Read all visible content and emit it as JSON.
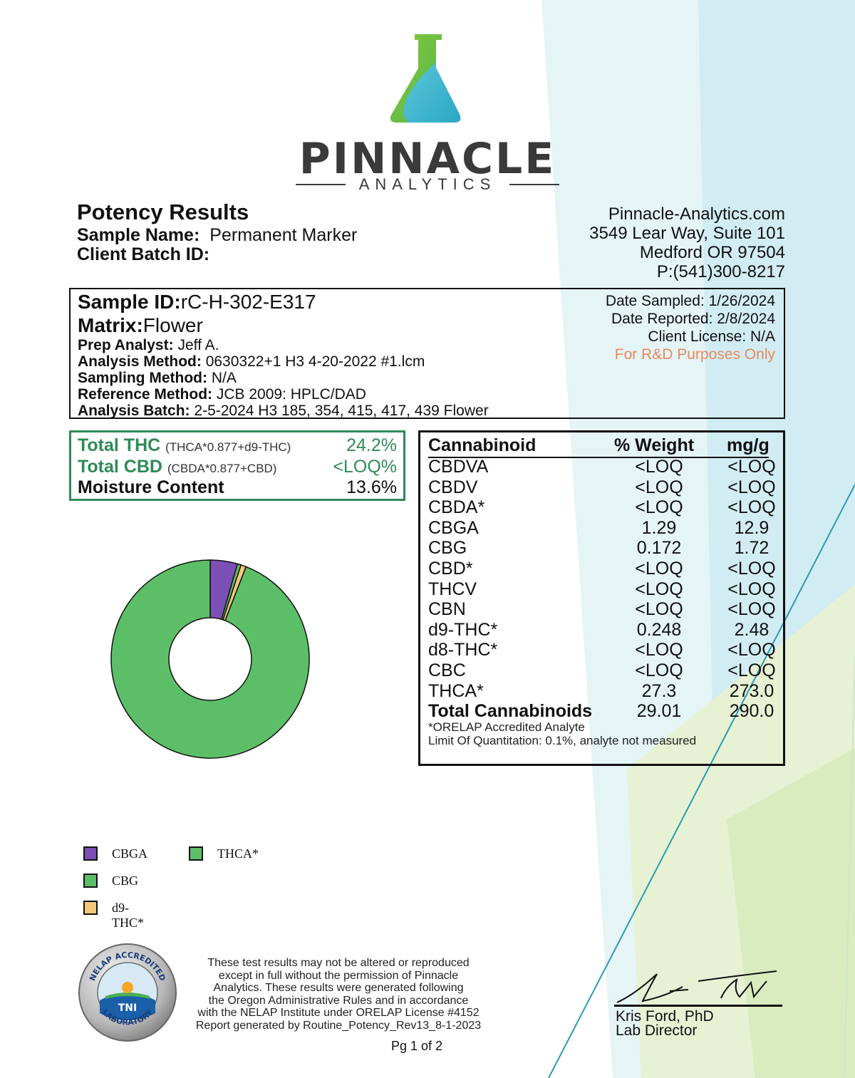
{
  "logo": {
    "word": "PINNACLE",
    "sub": "ANALYTICS"
  },
  "header": {
    "title": "Potency Results",
    "sample_name_label": "Sample Name:",
    "sample_name": "Permanent Marker",
    "client_batch_label": "Client Batch ID:",
    "client_batch": ""
  },
  "address": {
    "website": "Pinnacle-Analytics.com",
    "street": "3549 Lear Way, Suite 101",
    "city": "Medford OR 97504",
    "phone": "P:(541)300-8217"
  },
  "sample": {
    "id_label": "Sample ID:",
    "id": "rC-H-302-E317",
    "matrix_label": "Matrix:",
    "matrix": "Flower",
    "prep_label": "Prep Analyst:",
    "prep": "Jeff A.",
    "method_label": "Analysis Method:",
    "method": "0630322+1 H3 4-20-2022 #1.lcm",
    "sampling_label": "Sampling Method:",
    "sampling": "N/A",
    "reference_label": "Reference Method:",
    "reference": "JCB 2009: HPLC/DAD",
    "batch_label": "Analysis Batch:",
    "batch": "2-5-2024 H3 185, 354, 415, 417, 439 Flower",
    "date_sampled": "Date Sampled:  1/26/2024",
    "date_reported": "Date Reported: 2/8/2024",
    "client_license": "Client License: N/A",
    "purpose": "For R&D Purposes Only"
  },
  "totals": {
    "thc_label": "Total THC",
    "thc_formula": "(THCA*0.877+d9-THC)",
    "thc_value": "24.2%",
    "cbd_label": "Total CBD",
    "cbd_formula": "(CBDA*0.877+CBD)",
    "cbd_value": "<LOQ%",
    "moisture_label": "Moisture Content",
    "moisture_value": "13.6%"
  },
  "cannabinoids": {
    "headers": {
      "name": "Cannabinoid",
      "pct": "% Weight",
      "mg": "mg/g"
    },
    "rows": [
      {
        "name": "CBDVA",
        "pct": "<LOQ",
        "mg": "<LOQ"
      },
      {
        "name": "CBDV",
        "pct": "<LOQ",
        "mg": "<LOQ"
      },
      {
        "name": "CBDA*",
        "pct": "<LOQ",
        "mg": "<LOQ"
      },
      {
        "name": "CBGA",
        "pct": "1.29",
        "mg": "12.9"
      },
      {
        "name": "CBG",
        "pct": "0.172",
        "mg": "1.72"
      },
      {
        "name": "CBD*",
        "pct": "<LOQ",
        "mg": "<LOQ"
      },
      {
        "name": "THCV",
        "pct": "<LOQ",
        "mg": "<LOQ"
      },
      {
        "name": "CBN",
        "pct": "<LOQ",
        "mg": "<LOQ"
      },
      {
        "name": "d9-THC*",
        "pct": "0.248",
        "mg": "2.48"
      },
      {
        "name": "d8-THC*",
        "pct": "<LOQ",
        "mg": "<LOQ"
      },
      {
        "name": "CBC",
        "pct": "<LOQ",
        "mg": "<LOQ"
      },
      {
        "name": "THCA*",
        "pct": "27.3",
        "mg": "273.0"
      }
    ],
    "total": {
      "name": "Total Cannabinoids",
      "pct": "29.01",
      "mg": "290.0"
    },
    "note1": "*ORELAP Accredited Analyte",
    "note2": "Limit Of Quantitation: 0.1%, analyte not measured"
  },
  "chart_data": {
    "type": "pie",
    "categories": [
      "CBGA",
      "CBG",
      "d9-THC*",
      "THCA*"
    ],
    "values": [
      1.29,
      0.172,
      0.248,
      27.3
    ],
    "colors": [
      "#7b4fb5",
      "#5cbf68",
      "#f5c878",
      "#5cbf68"
    ],
    "legend": [
      {
        "name": "CBGA",
        "color": "#7b4fb5"
      },
      {
        "name": "THCA*",
        "color": "#5cbf68"
      },
      {
        "name": "CBG",
        "color": "#5cbf68"
      },
      {
        "name": "d9-THC*",
        "color": "#f5c878"
      }
    ],
    "legend_placement": "bottom-left"
  },
  "badge": {
    "text_top": "NELAP ACCREDITED",
    "text_bottom": "LABORATORY",
    "center": "TNI"
  },
  "footer": {
    "disclaimer": [
      "These test results may not be altered or reproduced",
      "except in full without the permission of Pinnacle",
      "Analytics. These results were generated following",
      "the Oregon Administrative Rules and in accordance",
      "with the NELAP Institute under ORELAP License #4152",
      "Report generated by Routine_Potency_Rev13_8-1-2023"
    ],
    "page": "Pg 1 of 2",
    "director_name": "Kris Ford, PhD",
    "director_title": "Lab Director"
  }
}
